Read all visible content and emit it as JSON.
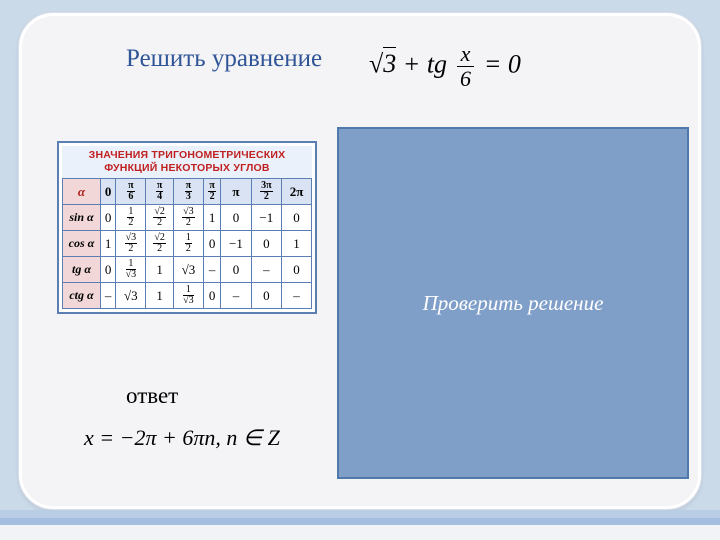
{
  "title": "Решить уравнение",
  "equation": {
    "sqrt_val": "3",
    "plus": " + ",
    "func": "tg",
    "frac_num": "x",
    "frac_den": "6",
    "tail": " = 0"
  },
  "trig": {
    "caption_l1": "ЗНАЧЕНИЯ ТРИГОНОМЕТРИЧЕСКИХ",
    "caption_l2": "ФУНКЦИЙ НЕКОТОРЫХ УГЛОВ",
    "header_alpha": "α",
    "angles": [
      "0",
      "π/6",
      "π/4",
      "π/3",
      "π/2",
      "π",
      "3π/2",
      "2π"
    ],
    "rows": [
      {
        "label": "sin α",
        "cells": [
          "0",
          "1/2",
          "√2/2",
          "√3/2",
          "1",
          "0",
          "−1",
          "0"
        ]
      },
      {
        "label": "cos α",
        "cells": [
          "1",
          "√3/2",
          "√2/2",
          "1/2",
          "0",
          "−1",
          "0",
          "1"
        ]
      },
      {
        "label": "tg α",
        "cells": [
          "0",
          "1/√3",
          "1",
          "√3",
          "–",
          "0",
          "–",
          "0"
        ]
      },
      {
        "label": "ctg α",
        "cells": [
          "–",
          "√3",
          "1",
          "1/√3",
          "0",
          "–",
          "0",
          "–"
        ]
      }
    ]
  },
  "check_label": "Проверить решение",
  "answer_label": "ответ",
  "answer": "x = −2π + 6πn, n ∈ Z",
  "colors": {
    "page_bg": "#cbdae9",
    "frame_bg": "#f4f4f6",
    "title": "#2f5597",
    "panel_bg": "#7f9fc9",
    "panel_border": "#4f79ab",
    "trig_border": "#5b7fb3",
    "trig_header_bg": "#d9e3f3",
    "trig_func_bg": "#f1d7d7",
    "trig_caption_color": "#c02020"
  }
}
